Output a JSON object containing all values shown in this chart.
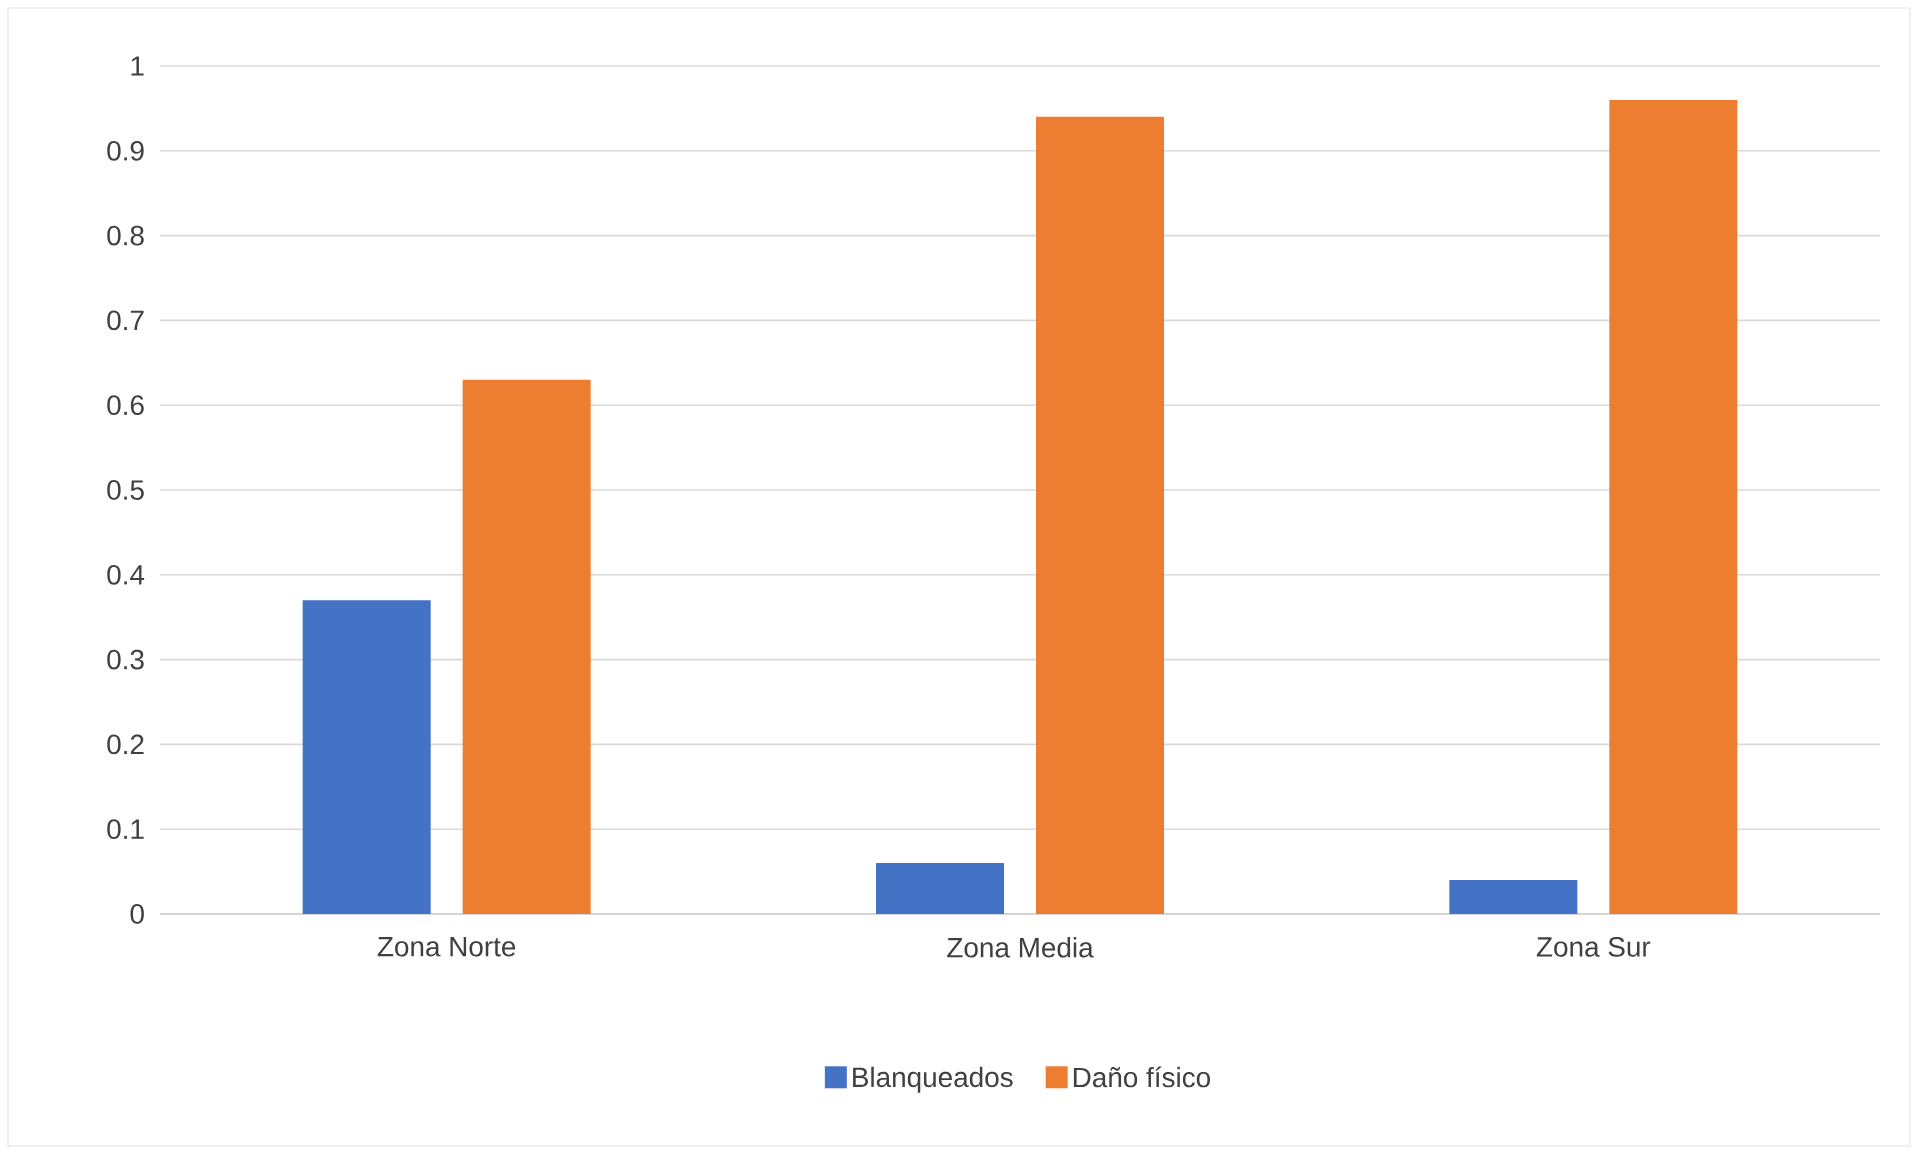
{
  "chart_data": {
    "type": "bar",
    "categories": [
      "Zona Norte",
      "Zona Media",
      "Zona Sur"
    ],
    "series": [
      {
        "name": "Blanqueados",
        "color": "#4472c4",
        "values": [
          0.37,
          0.06,
          0.04
        ]
      },
      {
        "name": "Daño físico",
        "color": "#ed7d31",
        "values": [
          0.63,
          0.94,
          0.96
        ]
      }
    ],
    "ylim": [
      0,
      1
    ],
    "yticks": [
      0,
      0.1,
      0.2,
      0.3,
      0.4,
      0.5,
      0.6,
      0.7,
      0.8,
      0.9,
      1
    ],
    "grid": "y",
    "legend": "bottom"
  }
}
